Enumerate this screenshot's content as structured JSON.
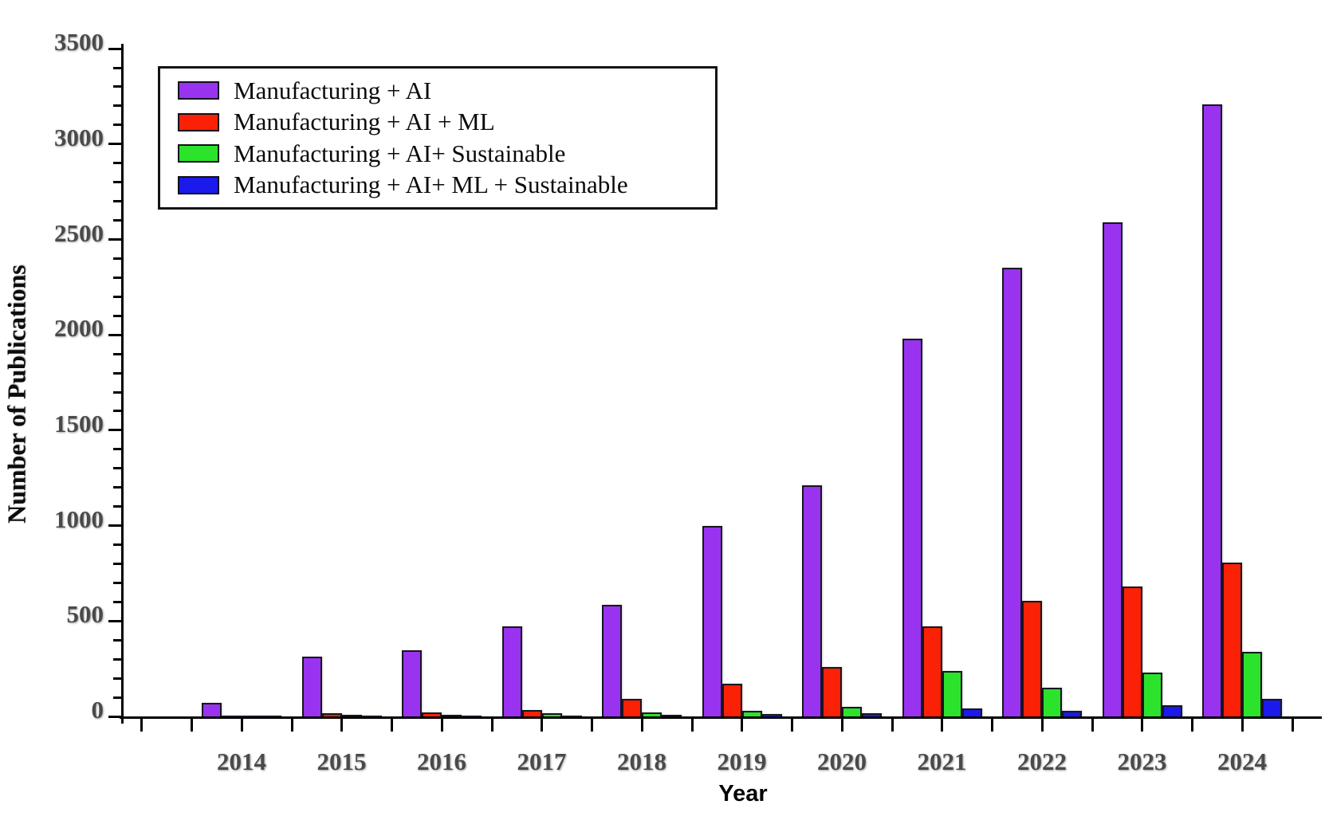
{
  "chart_data": {
    "type": "bar",
    "title": "",
    "xlabel": "Year",
    "ylabel": "Number of Publications",
    "categories": [
      "2014",
      "2015",
      "2016",
      "2017",
      "2018",
      "2019",
      "2020",
      "2021",
      "2022",
      "2023",
      "2024"
    ],
    "series": [
      {
        "name": "Manufacturing + AI",
        "color": "#9933F0",
        "values": [
          70,
          315,
          345,
          470,
          585,
          1000,
          1210,
          1980,
          2350,
          2590,
          3210
        ]
      },
      {
        "name": "Manufacturing + AI + ML",
        "color": "#FA2106",
        "values": [
          5,
          15,
          20,
          35,
          90,
          170,
          260,
          470,
          605,
          680,
          805
        ]
      },
      {
        "name": "Manufacturing + AI+ Sustainable",
        "color": "#2BE32B",
        "values": [
          3,
          8,
          10,
          15,
          20,
          30,
          50,
          240,
          150,
          230,
          340
        ]
      },
      {
        "name": "Manufacturing + AI+ ML + Sustainable",
        "color": "#1A1AEC",
        "values": [
          1,
          2,
          3,
          5,
          8,
          12,
          15,
          40,
          30,
          60,
          90
        ]
      }
    ],
    "ylim": [
      0,
      3500
    ],
    "ytick_step": 500,
    "ytick_minor_step": 100,
    "ytick_labels": [
      "0",
      "500",
      "1000",
      "1500",
      "2000",
      "2500",
      "3000",
      "3500"
    ],
    "legend_position": "top-left",
    "grid": false,
    "axis_color": "#000000",
    "tick_label_color": "#4a4a4a"
  }
}
